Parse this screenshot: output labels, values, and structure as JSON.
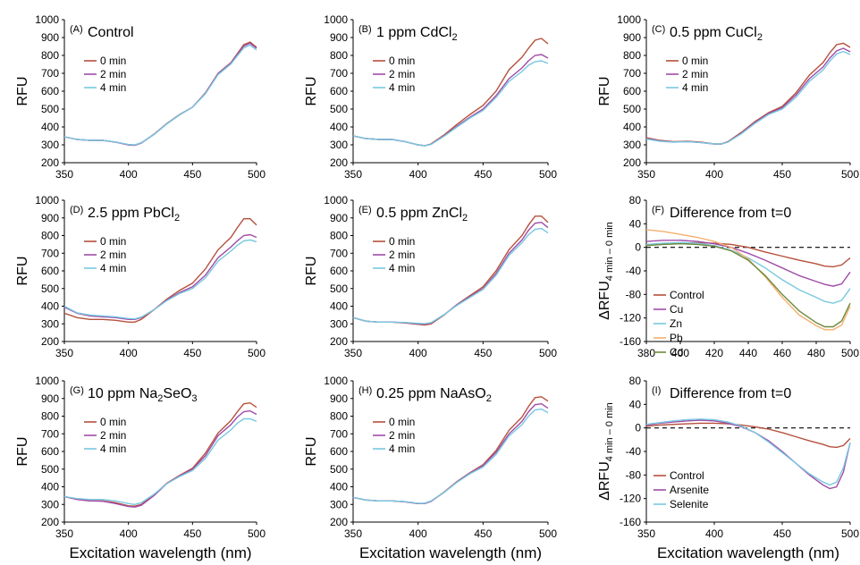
{
  "colors": {
    "t0": "#b5503c",
    "t2": "#a04ca8",
    "t4": "#78c8e0",
    "control": "#b5503c",
    "cu": "#a04ca8",
    "zn": "#78c8e0",
    "pb": "#f5b070",
    "cd": "#6f8a3c",
    "arsenite": "#a04ca8",
    "selenite": "#78c8e0"
  },
  "chart_data": [
    {
      "type": "line",
      "panel": "(A)",
      "title": "Control",
      "title_sub": "",
      "title_rest": "",
      "xlabel": "",
      "ylabel": "RFU",
      "xlim": [
        350,
        500
      ],
      "ylim": [
        200,
        1000
      ],
      "xticks": [
        "350",
        "400",
        "450",
        "500"
      ],
      "yticks": [
        "200",
        "300",
        "400",
        "500",
        "600",
        "700",
        "800",
        "900",
        "1000"
      ],
      "x": [
        350,
        360,
        370,
        380,
        390,
        400,
        405,
        410,
        420,
        430,
        440,
        450,
        460,
        470,
        480,
        485,
        490,
        495,
        500
      ],
      "series": [
        {
          "name": "0 min",
          "color_key": "t0",
          "values": [
            345,
            330,
            325,
            325,
            315,
            300,
            298,
            310,
            360,
            420,
            470,
            510,
            590,
            700,
            760,
            810,
            860,
            875,
            845
          ]
        },
        {
          "name": "2 min",
          "color_key": "t2",
          "values": [
            345,
            330,
            325,
            325,
            315,
            300,
            297,
            310,
            358,
            418,
            468,
            510,
            588,
            698,
            758,
            805,
            852,
            868,
            840
          ]
        },
        {
          "name": "4 min",
          "color_key": "t4",
          "values": [
            345,
            330,
            325,
            325,
            316,
            302,
            300,
            312,
            358,
            418,
            468,
            510,
            585,
            693,
            752,
            798,
            842,
            858,
            830
          ]
        }
      ]
    },
    {
      "type": "line",
      "panel": "(B)",
      "title": "1 ppm CdCl",
      "title_sub": "2",
      "title_rest": "",
      "xlabel": "",
      "ylabel": "RFU",
      "xlim": [
        350,
        500
      ],
      "ylim": [
        200,
        1000
      ],
      "xticks": [
        "350",
        "400",
        "450",
        "500"
      ],
      "yticks": [
        "200",
        "300",
        "400",
        "500",
        "600",
        "700",
        "800",
        "900",
        "1000"
      ],
      "x": [
        350,
        360,
        370,
        380,
        390,
        400,
        405,
        410,
        420,
        430,
        440,
        450,
        460,
        470,
        480,
        485,
        490,
        495,
        500
      ],
      "series": [
        {
          "name": "0 min",
          "color_key": "t0",
          "values": [
            350,
            335,
            330,
            330,
            318,
            300,
            295,
            305,
            355,
            415,
            470,
            520,
            600,
            720,
            790,
            840,
            885,
            895,
            865
          ]
        },
        {
          "name": "2 min",
          "color_key": "t2",
          "values": [
            350,
            335,
            330,
            330,
            318,
            300,
            295,
            303,
            350,
            405,
            455,
            500,
            575,
            670,
            730,
            770,
            800,
            805,
            785
          ]
        },
        {
          "name": "4 min",
          "color_key": "t4",
          "values": [
            350,
            335,
            330,
            330,
            318,
            300,
            295,
            302,
            348,
            400,
            450,
            492,
            565,
            655,
            710,
            745,
            765,
            770,
            755
          ]
        }
      ]
    },
    {
      "type": "line",
      "panel": "(C)",
      "title": "0.5 ppm CuCl",
      "title_sub": "2",
      "title_rest": "",
      "xlabel": "",
      "ylabel": "RFU",
      "xlim": [
        350,
        500
      ],
      "ylim": [
        200,
        1000
      ],
      "xticks": [
        "350",
        "400",
        "450",
        "500"
      ],
      "yticks": [
        "200",
        "300",
        "400",
        "500",
        "600",
        "700",
        "800",
        "900",
        "1000"
      ],
      "x": [
        350,
        360,
        370,
        380,
        390,
        400,
        405,
        410,
        420,
        430,
        440,
        450,
        460,
        470,
        480,
        485,
        490,
        495,
        500
      ],
      "series": [
        {
          "name": "0 min",
          "color_key": "t0",
          "values": [
            340,
            325,
            318,
            320,
            315,
            305,
            305,
            318,
            370,
            430,
            480,
            515,
            590,
            690,
            760,
            815,
            860,
            868,
            845
          ]
        },
        {
          "name": "2 min",
          "color_key": "t2",
          "values": [
            335,
            322,
            316,
            318,
            313,
            304,
            304,
            316,
            365,
            425,
            475,
            508,
            578,
            670,
            735,
            785,
            825,
            840,
            820
          ]
        },
        {
          "name": "4 min",
          "color_key": "t4",
          "values": [
            332,
            320,
            315,
            318,
            313,
            305,
            305,
            315,
            362,
            420,
            470,
            500,
            565,
            655,
            718,
            768,
            808,
            822,
            805
          ]
        }
      ]
    },
    {
      "type": "line",
      "panel": "(D)",
      "title": "2.5 ppm PbCl",
      "title_sub": "2",
      "title_rest": "",
      "xlabel": "",
      "ylabel": "RFU",
      "xlim": [
        350,
        500
      ],
      "ylim": [
        200,
        1000
      ],
      "xticks": [
        "350",
        "400",
        "450",
        "500"
      ],
      "yticks": [
        "200",
        "300",
        "400",
        "500",
        "600",
        "700",
        "800",
        "900",
        "1000"
      ],
      "x": [
        350,
        360,
        370,
        380,
        390,
        400,
        405,
        410,
        420,
        430,
        440,
        450,
        460,
        470,
        480,
        485,
        490,
        495,
        500
      ],
      "series": [
        {
          "name": "0 min",
          "color_key": "t0",
          "values": [
            360,
            335,
            325,
            325,
            320,
            310,
            310,
            325,
            380,
            440,
            490,
            530,
            610,
            720,
            790,
            845,
            895,
            895,
            860
          ]
        },
        {
          "name": "2 min",
          "color_key": "t2",
          "values": [
            395,
            360,
            345,
            340,
            335,
            325,
            325,
            335,
            380,
            435,
            478,
            510,
            575,
            675,
            735,
            770,
            800,
            805,
            790
          ]
        },
        {
          "name": "4 min",
          "color_key": "t4",
          "values": [
            400,
            362,
            350,
            345,
            340,
            330,
            328,
            338,
            380,
            432,
            472,
            500,
            560,
            655,
            712,
            745,
            770,
            775,
            765
          ]
        }
      ]
    },
    {
      "type": "line",
      "panel": "(E)",
      "title": "0.5 ppm ZnCl",
      "title_sub": "2",
      "title_rest": "",
      "xlabel": "",
      "ylabel": "RFU",
      "xlim": [
        350,
        500
      ],
      "ylim": [
        200,
        1000
      ],
      "xticks": [
        "350",
        "400",
        "450",
        "500"
      ],
      "yticks": [
        "200",
        "300",
        "400",
        "500",
        "600",
        "700",
        "800",
        "900",
        "1000"
      ],
      "x": [
        350,
        360,
        370,
        380,
        390,
        400,
        405,
        410,
        420,
        430,
        440,
        450,
        460,
        470,
        480,
        485,
        490,
        495,
        500
      ],
      "series": [
        {
          "name": "0 min",
          "color_key": "t0",
          "values": [
            335,
            315,
            310,
            310,
            305,
            297,
            293,
            300,
            350,
            410,
            460,
            510,
            600,
            720,
            800,
            860,
            910,
            910,
            875
          ]
        },
        {
          "name": "2 min",
          "color_key": "t2",
          "values": [
            335,
            315,
            310,
            310,
            307,
            300,
            298,
            305,
            352,
            408,
            455,
            500,
            585,
            700,
            775,
            830,
            870,
            875,
            845
          ]
        },
        {
          "name": "4 min",
          "color_key": "t4",
          "values": [
            335,
            315,
            310,
            310,
            308,
            303,
            301,
            307,
            352,
            405,
            450,
            495,
            575,
            688,
            760,
            805,
            835,
            840,
            815
          ]
        }
      ]
    },
    {
      "type": "line",
      "panel": "(F)",
      "title": "Difference from t=0",
      "title_sub": "",
      "title_rest": "",
      "xlabel": "",
      "ylabel": "ΔRFU",
      "ylabel_sub": "4 min – 0 min",
      "xlim": [
        380,
        500
      ],
      "ylim": [
        -160,
        80
      ],
      "zero_line": true,
      "xticks": [
        "380",
        "400",
        "420",
        "440",
        "460",
        "480",
        "500"
      ],
      "yticks": [
        "-160",
        "-120",
        "-80",
        "-40",
        "0",
        "40",
        "80"
      ],
      "x": [
        380,
        390,
        400,
        410,
        420,
        430,
        440,
        450,
        460,
        470,
        480,
        485,
        490,
        495,
        500
      ],
      "series": [
        {
          "name": "Control",
          "color_key": "control",
          "values": [
            5,
            6,
            7,
            8,
            7,
            5,
            0,
            -8,
            -15,
            -22,
            -28,
            -32,
            -33,
            -30,
            -18
          ]
        },
        {
          "name": "Cu",
          "color_key": "cu",
          "values": [
            10,
            12,
            12,
            10,
            6,
            0,
            -10,
            -22,
            -35,
            -48,
            -58,
            -63,
            -66,
            -62,
            -42
          ]
        },
        {
          "name": "Zn",
          "color_key": "zn",
          "values": [
            5,
            7,
            8,
            7,
            3,
            -5,
            -18,
            -35,
            -55,
            -72,
            -85,
            -92,
            -95,
            -90,
            -70
          ]
        },
        {
          "name": "Pb",
          "color_key": "pb",
          "values": [
            30,
            27,
            22,
            17,
            10,
            0,
            -20,
            -50,
            -85,
            -115,
            -133,
            -140,
            -140,
            -132,
            -100
          ]
        },
        {
          "name": "Cd",
          "color_key": "cd",
          "values": [
            3,
            5,
            6,
            5,
            2,
            -6,
            -22,
            -48,
            -80,
            -108,
            -128,
            -135,
            -135,
            -125,
            -95
          ]
        }
      ]
    },
    {
      "type": "line",
      "panel": "(G)",
      "title": "10 ppm Na",
      "title_sub": "2",
      "title_rest": "SeO",
      "title_sub2": "3",
      "xlabel": "Excitation wavelength (nm)",
      "ylabel": "RFU",
      "xlim": [
        350,
        500
      ],
      "ylim": [
        200,
        1000
      ],
      "xticks": [
        "350",
        "400",
        "450",
        "500"
      ],
      "yticks": [
        "200",
        "300",
        "400",
        "500",
        "600",
        "700",
        "800",
        "900",
        "1000"
      ],
      "x": [
        350,
        360,
        370,
        380,
        390,
        400,
        405,
        410,
        420,
        430,
        440,
        450,
        460,
        470,
        480,
        485,
        490,
        495,
        500
      ],
      "series": [
        {
          "name": "0 min",
          "color_key": "t0",
          "values": [
            345,
            328,
            320,
            320,
            310,
            292,
            290,
            300,
            355,
            420,
            465,
            505,
            590,
            705,
            775,
            825,
            870,
            875,
            850
          ]
        },
        {
          "name": "2 min",
          "color_key": "t2",
          "values": [
            345,
            328,
            320,
            318,
            305,
            288,
            285,
            295,
            350,
            418,
            462,
            500,
            575,
            690,
            752,
            795,
            825,
            830,
            810
          ]
        },
        {
          "name": "4 min",
          "color_key": "t4",
          "values": [
            345,
            333,
            328,
            328,
            320,
            305,
            300,
            310,
            358,
            418,
            458,
            492,
            560,
            665,
            722,
            760,
            785,
            785,
            770
          ]
        }
      ]
    },
    {
      "type": "line",
      "panel": "(H)",
      "title": "0.25 ppm NaAsO",
      "title_sub": "2",
      "title_rest": "",
      "xlabel": "Excitation wavelength (nm)",
      "ylabel": "RFU",
      "xlim": [
        350,
        500
      ],
      "ylim": [
        200,
        1000
      ],
      "xticks": [
        "350",
        "400",
        "450",
        "500"
      ],
      "yticks": [
        "200",
        "300",
        "400",
        "500",
        "600",
        "700",
        "800",
        "900",
        "1000"
      ],
      "x": [
        350,
        360,
        370,
        380,
        390,
        400,
        405,
        410,
        420,
        430,
        440,
        450,
        460,
        470,
        480,
        485,
        490,
        495,
        500
      ],
      "series": [
        {
          "name": "0 min",
          "color_key": "t0",
          "values": [
            340,
            325,
            320,
            320,
            315,
            305,
            305,
            318,
            370,
            430,
            480,
            525,
            605,
            720,
            795,
            855,
            905,
            910,
            885
          ]
        },
        {
          "name": "2 min",
          "color_key": "t2",
          "values": [
            340,
            325,
            320,
            320,
            315,
            305,
            305,
            318,
            368,
            428,
            478,
            520,
            595,
            700,
            770,
            825,
            865,
            870,
            845
          ]
        },
        {
          "name": "4 min",
          "color_key": "t4",
          "values": [
            340,
            325,
            320,
            320,
            316,
            307,
            307,
            320,
            368,
            426,
            474,
            512,
            583,
            688,
            752,
            800,
            835,
            840,
            820
          ]
        }
      ]
    },
    {
      "type": "line",
      "panel": "(I)",
      "title": "Difference from t=0",
      "title_sub": "",
      "title_rest": "",
      "xlabel": "Excitation wavelength (nm)",
      "ylabel": "ΔRFU",
      "ylabel_sub": "4 min – 0 min",
      "xlim": [
        350,
        500
      ],
      "ylim": [
        -160,
        80
      ],
      "zero_line": true,
      "xticks": [
        "350",
        "400",
        "450",
        "500"
      ],
      "yticks": [
        "-160",
        "-120",
        "-80",
        "-40",
        "0",
        "40",
        "80"
      ],
      "x": [
        350,
        360,
        370,
        380,
        390,
        400,
        410,
        420,
        430,
        440,
        450,
        460,
        470,
        480,
        485,
        490,
        495,
        500
      ],
      "series": [
        {
          "name": "Control",
          "color_key": "control",
          "values": [
            3,
            5,
            6,
            7,
            8,
            8,
            7,
            5,
            2,
            -2,
            -8,
            -15,
            -22,
            -28,
            -32,
            -33,
            -30,
            -18
          ]
        },
        {
          "name": "Arsenite",
          "color_key": "arsenite",
          "values": [
            5,
            8,
            10,
            12,
            13,
            12,
            8,
            2,
            -8,
            -22,
            -40,
            -60,
            -80,
            -97,
            -103,
            -100,
            -75,
            -25
          ]
        },
        {
          "name": "Selenite",
          "color_key": "selenite",
          "values": [
            6,
            9,
            12,
            14,
            15,
            14,
            10,
            3,
            -8,
            -24,
            -42,
            -60,
            -78,
            -92,
            -97,
            -92,
            -68,
            -25
          ]
        }
      ]
    }
  ]
}
